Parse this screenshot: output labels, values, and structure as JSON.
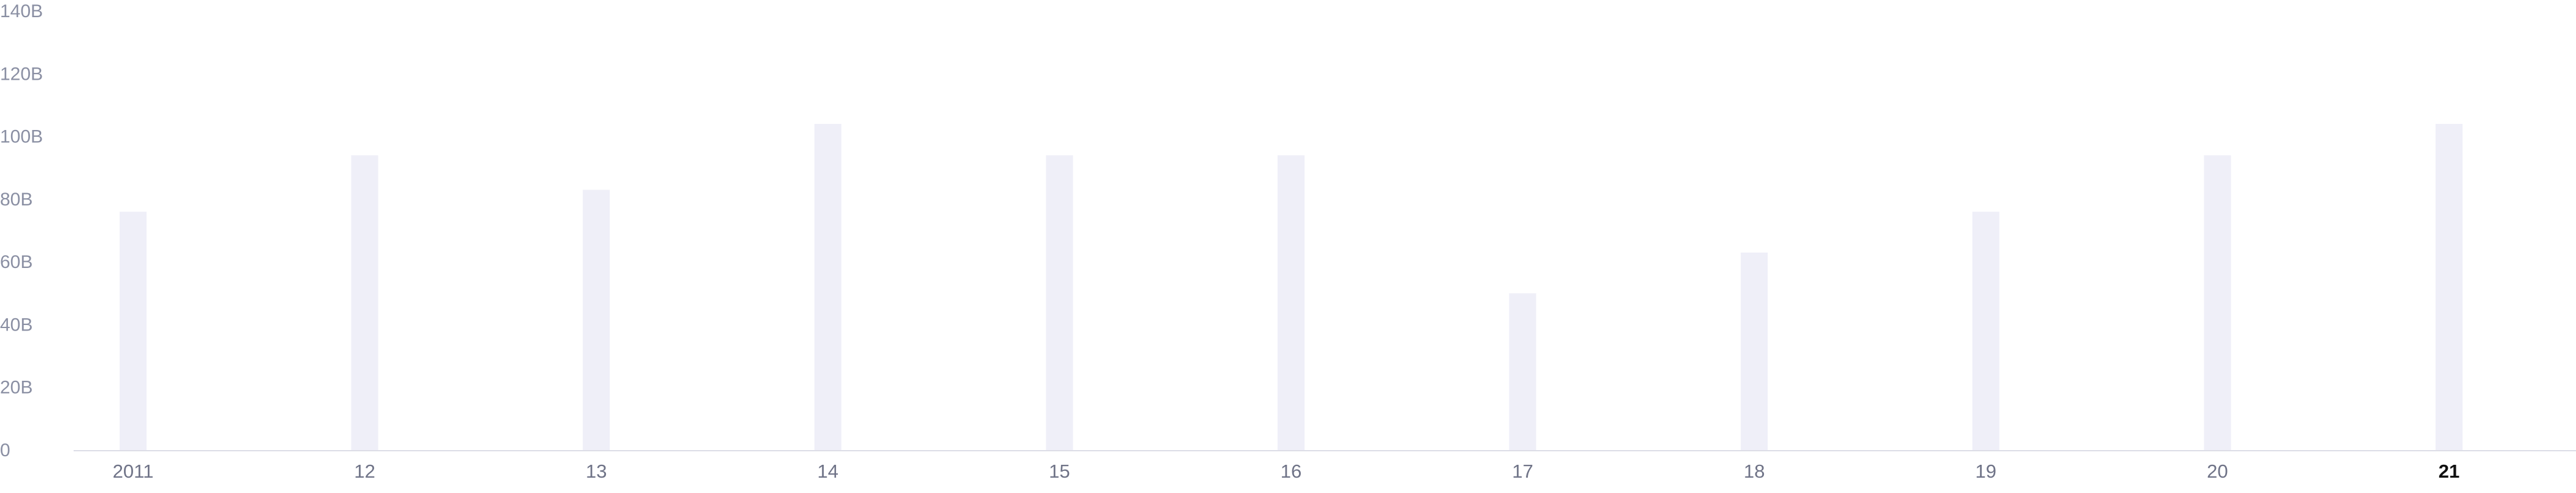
{
  "chart_data": {
    "type": "bar",
    "title": "",
    "xlabel": "",
    "ylabel": "",
    "categories": [
      "2011",
      "12",
      "13",
      "14",
      "15",
      "16",
      "17",
      "18",
      "19",
      "20",
      "21"
    ],
    "values": [
      76,
      94,
      83,
      104,
      94,
      94,
      50,
      63,
      76,
      94,
      104
    ],
    "ylim": [
      0,
      140
    ],
    "y_ticks": [
      0,
      20,
      40,
      60,
      80,
      100,
      120,
      140
    ],
    "y_tick_labels": [
      "0",
      "20B",
      "40B",
      "60B",
      "80B",
      "100B",
      "120B",
      "140B"
    ],
    "highlighted_category": "21",
    "grid": false,
    "bar_color": "#efeff8",
    "axis_label_color": "#8a8fa3",
    "highlight_label_color": "#111111"
  }
}
